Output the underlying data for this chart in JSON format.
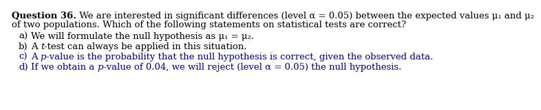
{
  "background_color": "#ffffff",
  "font_size": 9.5,
  "text_color": "#000000",
  "blue_color": "#00008B",
  "header_bold": "Question 36.",
  "header_rest": " We are interested in significant differences (level α = 0.05) between the expected values μ₁ and μ₂",
  "header_line2": "of two populations. Which of the following statements on statistical tests are correct?",
  "item_a_label": "a)",
  "item_a_pre": "We will formulate the null hypothesis as μ₁ = μ₂.",
  "item_b_label": "b)",
  "item_b_pre": "A ",
  "item_b_italic": "t",
  "item_b_post": "-test can always be applied in this situation.",
  "item_c_label": "c)",
  "item_c_pre": "A ",
  "item_c_italic": "p",
  "item_c_post": "-value is the probability that the null hypothesis is correct, given the observed data.",
  "item_d_label": "d)",
  "item_d_pre": "If we obtain a ",
  "item_d_italic": "p",
  "item_d_post": "-value of 0.04, we will reject (level α = 0.05) the null hypothesis."
}
